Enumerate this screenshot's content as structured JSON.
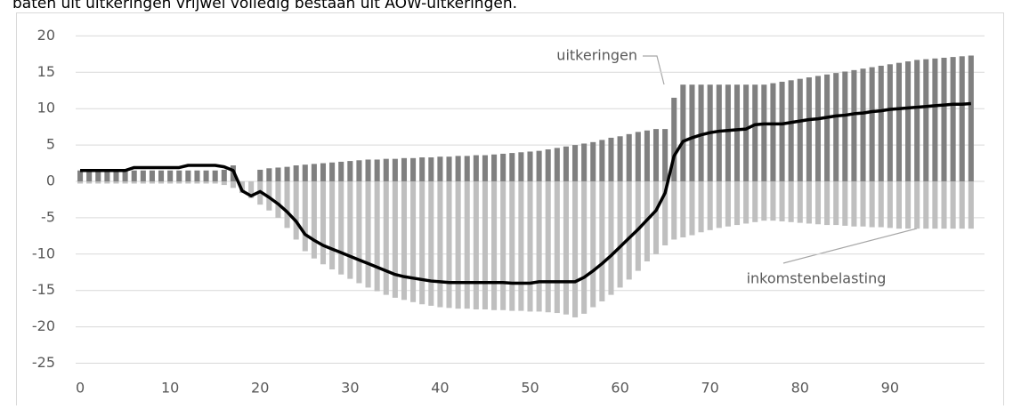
{
  "caption": "baten uit uitkeringen vrijwel volledig bestaan uit AOW-uitkeringen.",
  "chart_data": {
    "type": "bar",
    "x": [
      0,
      1,
      2,
      3,
      4,
      5,
      6,
      7,
      8,
      9,
      10,
      11,
      12,
      13,
      14,
      15,
      16,
      17,
      18,
      19,
      20,
      21,
      22,
      23,
      24,
      25,
      26,
      27,
      28,
      29,
      30,
      31,
      32,
      33,
      34,
      35,
      36,
      37,
      38,
      39,
      40,
      41,
      42,
      43,
      44,
      45,
      46,
      47,
      48,
      49,
      50,
      51,
      52,
      53,
      54,
      55,
      56,
      57,
      58,
      59,
      60,
      61,
      62,
      63,
      64,
      65,
      66,
      67,
      68,
      69,
      70,
      71,
      72,
      73,
      74,
      75,
      76,
      77,
      78,
      79,
      80,
      81,
      82,
      83,
      84,
      85,
      86,
      87,
      88,
      89,
      90,
      91,
      92,
      93,
      94,
      95,
      96,
      97,
      98,
      99
    ],
    "xlim": [
      -0.5,
      100.5
    ],
    "xticks": [
      0,
      10,
      20,
      30,
      40,
      50,
      60,
      70,
      80,
      90
    ],
    "ylim": [
      -25,
      20
    ],
    "yticks": [
      -25,
      -20,
      -15,
      -10,
      -5,
      0,
      5,
      10,
      15,
      20
    ],
    "grid": true,
    "series": [
      {
        "name": "uitkeringen",
        "type": "bar",
        "color": "#808080",
        "values": [
          1.5,
          1.5,
          1.5,
          1.5,
          1.5,
          1.5,
          1.5,
          1.5,
          1.5,
          1.5,
          1.5,
          1.5,
          1.5,
          1.5,
          1.5,
          1.5,
          1.6,
          2.2,
          0,
          0,
          1.6,
          1.8,
          1.9,
          2.0,
          2.2,
          2.3,
          2.4,
          2.5,
          2.6,
          2.7,
          2.8,
          2.9,
          3.0,
          3.0,
          3.1,
          3.1,
          3.2,
          3.2,
          3.3,
          3.3,
          3.4,
          3.4,
          3.5,
          3.5,
          3.6,
          3.6,
          3.7,
          3.8,
          3.9,
          4.0,
          4.1,
          4.2,
          4.4,
          4.6,
          4.8,
          5.0,
          5.2,
          5.4,
          5.7,
          6.0,
          6.2,
          6.5,
          6.8,
          7.0,
          7.2,
          7.2,
          11.5,
          13.3,
          13.3,
          13.3,
          13.3,
          13.3,
          13.3,
          13.3,
          13.3,
          13.3,
          13.3,
          13.5,
          13.7,
          13.9,
          14.1,
          14.3,
          14.5,
          14.7,
          14.9,
          15.1,
          15.3,
          15.5,
          15.7,
          15.9,
          16.1,
          16.3,
          16.5,
          16.7,
          16.8,
          16.9,
          17.0,
          17.1,
          17.2,
          17.3
        ]
      },
      {
        "name": "inkomstenbelasting",
        "type": "bar",
        "color": "#bfbfbf",
        "values": [
          -0.3,
          -0.3,
          -0.3,
          -0.3,
          -0.3,
          -0.3,
          -0.3,
          -0.3,
          -0.3,
          -0.3,
          -0.3,
          -0.3,
          -0.3,
          -0.3,
          -0.3,
          -0.3,
          -0.5,
          -0.9,
          -1.6,
          -2.3,
          -3.2,
          -4.0,
          -5.0,
          -6.4,
          -8.0,
          -9.6,
          -10.6,
          -11.4,
          -12.1,
          -12.8,
          -13.4,
          -14.0,
          -14.6,
          -15.1,
          -15.6,
          -16.0,
          -16.3,
          -16.6,
          -16.9,
          -17.1,
          -17.3,
          -17.4,
          -17.5,
          -17.5,
          -17.6,
          -17.6,
          -17.7,
          -17.7,
          -17.8,
          -17.8,
          -17.9,
          -17.9,
          -18.0,
          -18.1,
          -18.3,
          -18.7,
          -18.2,
          -17.3,
          -16.5,
          -15.6,
          -14.6,
          -13.5,
          -12.3,
          -11.0,
          -10.0,
          -8.8,
          -8.0,
          -7.7,
          -7.4,
          -7.0,
          -6.7,
          -6.4,
          -6.2,
          -6.0,
          -5.8,
          -5.6,
          -5.4,
          -5.4,
          -5.5,
          -5.6,
          -5.7,
          -5.8,
          -5.9,
          -6.0,
          -6.0,
          -6.1,
          -6.2,
          -6.2,
          -6.3,
          -6.3,
          -6.4,
          -6.5,
          -6.5,
          -6.5,
          -6.5,
          -6.5,
          -6.5,
          -6.5,
          -6.5,
          -6.5
        ]
      },
      {
        "type": "line",
        "color": "#000000",
        "values": [
          1.5,
          1.5,
          1.5,
          1.5,
          1.5,
          1.5,
          1.9,
          1.9,
          1.9,
          1.9,
          1.9,
          1.9,
          2.2,
          2.2,
          2.2,
          2.2,
          2.0,
          1.5,
          -1.3,
          -2.0,
          -1.4,
          -2.2,
          -3.1,
          -4.2,
          -5.5,
          -7.3,
          -8.1,
          -8.8,
          -9.3,
          -9.8,
          -10.3,
          -10.8,
          -11.3,
          -11.8,
          -12.3,
          -12.8,
          -13.1,
          -13.3,
          -13.5,
          -13.7,
          -13.8,
          -13.9,
          -13.9,
          -13.9,
          -13.9,
          -13.9,
          -13.9,
          -13.9,
          -14.0,
          -14.0,
          -14.0,
          -13.8,
          -13.8,
          -13.8,
          -13.8,
          -13.8,
          -13.2,
          -12.3,
          -11.3,
          -10.2,
          -9.0,
          -7.8,
          -6.6,
          -5.3,
          -4.0,
          -1.6,
          3.5,
          5.5,
          6.0,
          6.4,
          6.7,
          6.9,
          7.0,
          7.1,
          7.2,
          7.8,
          7.9,
          7.9,
          7.9,
          8.1,
          8.3,
          8.5,
          8.6,
          8.8,
          9.0,
          9.1,
          9.3,
          9.4,
          9.6,
          9.7,
          9.9,
          10.0,
          10.1,
          10.2,
          10.3,
          10.4,
          10.5,
          10.6,
          10.6,
          10.7
        ]
      }
    ]
  }
}
